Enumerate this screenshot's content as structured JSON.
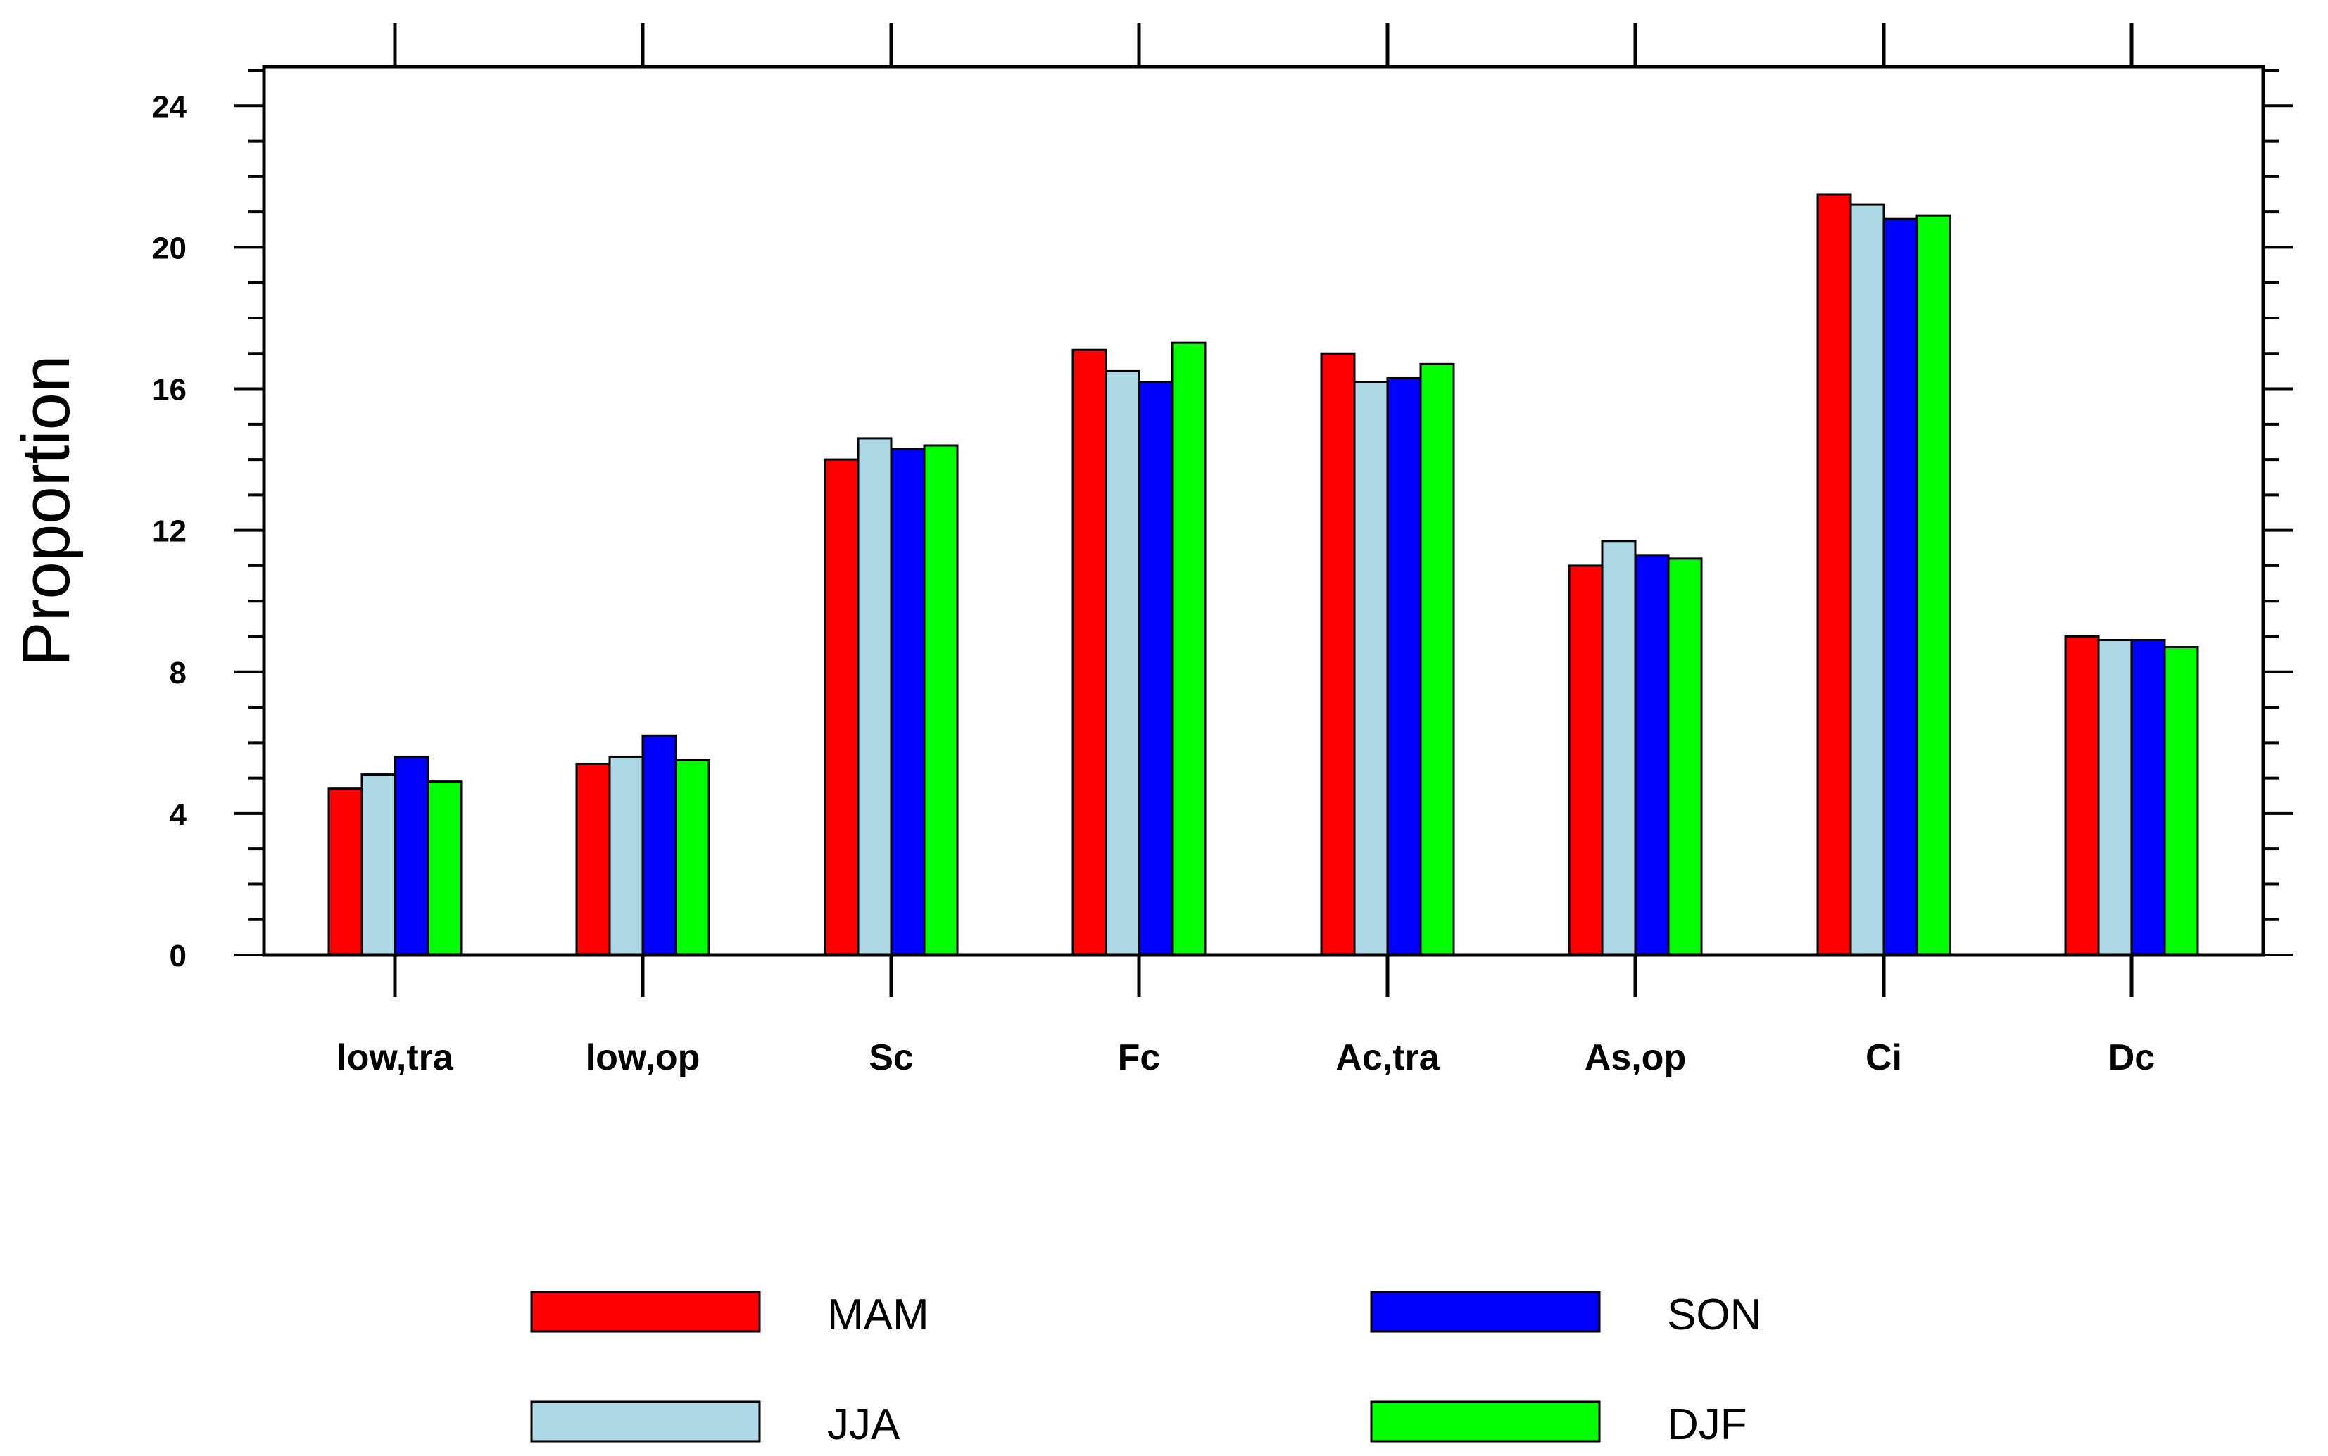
{
  "chart_data": {
    "type": "bar",
    "title": "",
    "xlabel": "",
    "ylabel": "Proportion",
    "ylim": [
      0,
      24
    ],
    "yticks": [
      0,
      4,
      8,
      12,
      16,
      20,
      24
    ],
    "categories": [
      "low,tra",
      "low,op",
      "Sc",
      "Fc",
      "Ac,tra",
      "As,op",
      "Ci",
      "Dc"
    ],
    "series": [
      {
        "name": "MAM",
        "color": "#ff0000",
        "values": [
          4.7,
          5.4,
          14.0,
          17.1,
          17.0,
          11.0,
          21.5,
          9.0
        ]
      },
      {
        "name": "JJA",
        "color": "#add8e6",
        "values": [
          5.1,
          5.6,
          14.6,
          16.5,
          16.2,
          11.7,
          21.2,
          8.9
        ]
      },
      {
        "name": "SON",
        "color": "#0000ff",
        "values": [
          5.6,
          6.2,
          14.3,
          16.2,
          16.3,
          11.3,
          20.8,
          8.9
        ]
      },
      {
        "name": "DJF",
        "color": "#00ff00",
        "values": [
          4.9,
          5.5,
          14.4,
          17.3,
          16.7,
          11.2,
          20.9,
          8.7
        ]
      }
    ],
    "legend": "bottom"
  }
}
